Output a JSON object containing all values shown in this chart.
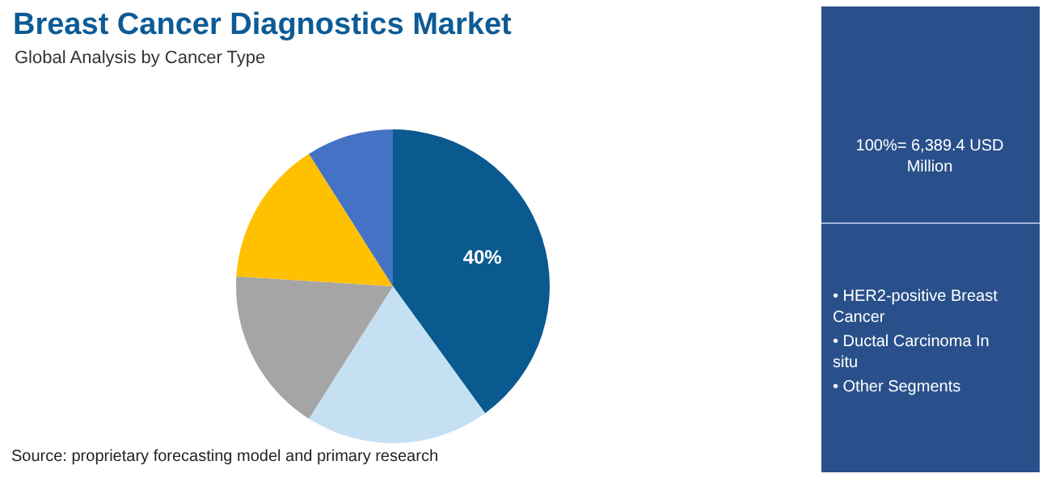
{
  "chart_data": {
    "type": "pie",
    "title": "Breast Cancer Diagnostics Market",
    "subtitle": "Global Analysis by Cancer Type",
    "categories": [
      null,
      null,
      null,
      null,
      null
    ],
    "values": [
      40,
      19,
      17,
      15,
      9
    ],
    "colors": [
      "#0b5a8f",
      "#c5e0f2",
      "#a5a5a5",
      "#ffc000",
      "#4472c4"
    ],
    "value_labels": [
      "40%",
      null,
      null,
      null,
      null
    ],
    "annotations": [
      "100%= 6,389.4 USD Million",
      "• HER2-positive Breast Cancer",
      "• Ductal Carcinoma In situ",
      "• Other Segments",
      "Source: proprietary forecasting model and primary research"
    ]
  }
}
